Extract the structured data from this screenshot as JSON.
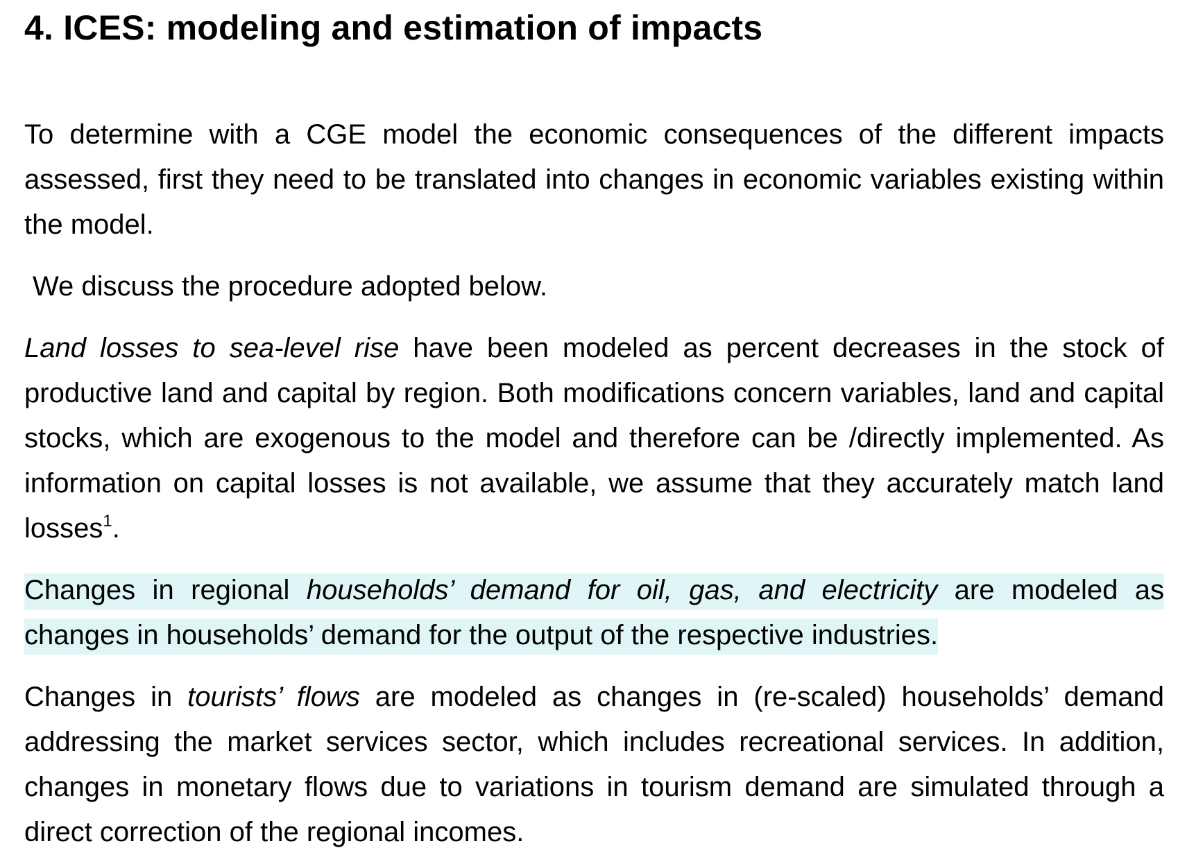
{
  "heading": "4. ICES: modeling and estimation of impacts",
  "paragraphs": {
    "p1": "To determine with a CGE model the economic consequences of the different impacts assessed, first they  need to be translated into changes in economic variables existing within  the model.",
    "p2": "We discuss the procedure adopted below.",
    "p3": {
      "italic": "Land losses to sea-level rise",
      "text": " have  been modeled as percent decreases in the stock of productive land and capital by region. Both modifications concern variables, land and capital stocks, which are exogenous to the model and therefore can be /directly implemented. As information on capital losses is not available, we assume that they accurately match land losses",
      "footnote": "1",
      "end": "."
    },
    "p4": {
      "pre": "Changes in regional ",
      "italic": "households’ demand for oil, gas, and electricity",
      "post": " are modeled as changes in households’ demand for the output of the respective industries."
    },
    "p5": {
      "pre": "Changes in ",
      "italic": "tourists’ flows",
      "post": " are modeled as changes in (re-scaled) households’ demand addressing the market services sector, which includes recreational services. In addition, changes in monetary flows due to variations in tourism demand are simulated through a direct correction of the regional incomes."
    }
  },
  "colors": {
    "highlight": "#e0f6f6",
    "text": "#000000"
  }
}
